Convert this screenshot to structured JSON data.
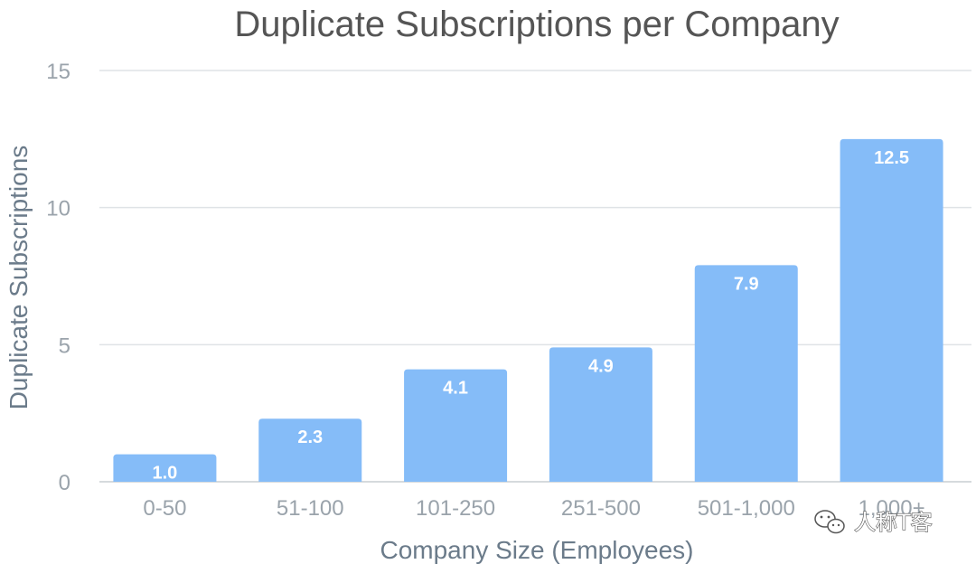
{
  "chart_data": {
    "type": "bar",
    "title": "Duplicate Subscriptions per Company",
    "xlabel": "Company Size (Employees)",
    "ylabel": "Duplicate Subscriptions",
    "categories": [
      "0-50",
      "51-100",
      "101-250",
      "251-500",
      "501-1,000",
      "1,000+"
    ],
    "values": [
      1.0,
      2.3,
      4.1,
      4.9,
      7.9,
      12.5
    ],
    "data_labels": [
      "1.0",
      "2.3",
      "4.1",
      "4.9",
      "7.9",
      "12.5"
    ],
    "yticks": [
      0,
      5,
      10,
      15
    ],
    "ylim": [
      0,
      15
    ],
    "grid": true,
    "legend": false,
    "bar_color": "#85bcf8",
    "watermark": "人称T客"
  }
}
